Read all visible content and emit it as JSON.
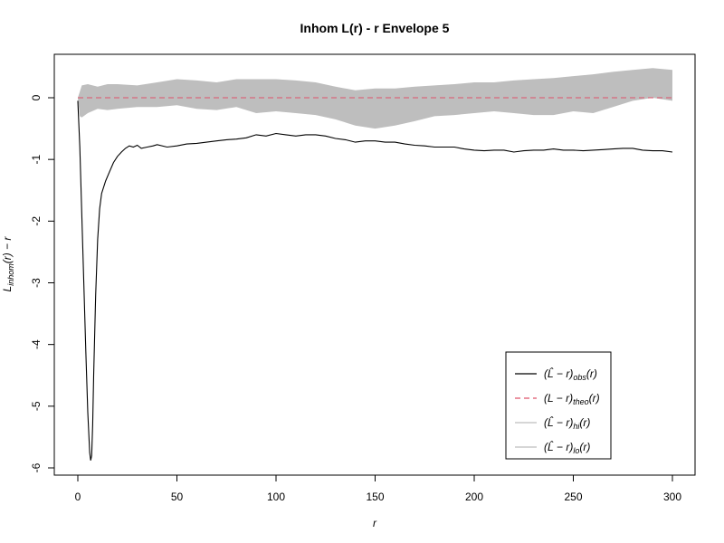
{
  "chart_data": {
    "type": "line",
    "title": "Inhom L(r) - r Envelope 5",
    "xlabel": "r",
    "ylabel": "L_inhom(r) − r",
    "xlim": [
      0,
      300
    ],
    "ylim": [
      -6,
      0.5
    ],
    "x_ticks": [
      0,
      50,
      100,
      150,
      200,
      250,
      300
    ],
    "x_tick_labels": [
      "0",
      "50",
      "100",
      "150",
      "200",
      "250",
      "300"
    ],
    "y_ticks": [
      -6,
      -5,
      -4,
      -3,
      -2,
      -1,
      0
    ],
    "y_tick_labels": [
      "-6",
      "-5",
      "-4",
      "-3",
      "-2",
      "-1",
      "0"
    ],
    "grid": false,
    "legend_position": "bottom-right",
    "legend": [
      {
        "series": "obs",
        "label_main": "(L̂ − r)",
        "sub": "obs",
        "suffix": "(r)",
        "color": "#000000",
        "dash": "none"
      },
      {
        "series": "theo",
        "label_main": "(L − r)",
        "sub": "theo",
        "suffix": "(r)",
        "color": "#DF536B",
        "dash": "6,4"
      },
      {
        "series": "hi",
        "label_main": "(L̂ − r)",
        "sub": "hi",
        "suffix": "(r)",
        "color": "#BEBEBE",
        "dash": "none"
      },
      {
        "series": "lo",
        "label_main": "(L̂ − r)",
        "sub": "lo",
        "suffix": "(r)",
        "color": "#BEBEBE",
        "dash": "none"
      }
    ],
    "envelope_color": "#BEBEBE",
    "series": [
      {
        "name": "obs",
        "color": "#000000",
        "x": [
          0,
          1,
          2,
          3,
          4,
          5,
          6,
          6.5,
          7,
          7.5,
          8,
          9,
          10,
          11,
          12,
          14,
          16,
          18,
          20,
          22,
          24,
          26,
          28,
          30,
          32,
          35,
          38,
          40,
          45,
          50,
          55,
          60,
          65,
          70,
          75,
          80,
          85,
          90,
          95,
          100,
          105,
          110,
          115,
          120,
          125,
          130,
          135,
          140,
          145,
          150,
          155,
          160,
          165,
          170,
          175,
          180,
          185,
          190,
          195,
          200,
          205,
          210,
          215,
          220,
          225,
          230,
          235,
          240,
          245,
          250,
          255,
          260,
          265,
          270,
          275,
          280,
          285,
          290,
          295,
          300
        ],
        "y": [
          -0.05,
          -0.8,
          -1.9,
          -3.0,
          -4.1,
          -5.1,
          -5.75,
          -5.88,
          -5.8,
          -5.3,
          -4.5,
          -3.2,
          -2.3,
          -1.8,
          -1.55,
          -1.35,
          -1.2,
          -1.05,
          -0.95,
          -0.88,
          -0.82,
          -0.78,
          -0.8,
          -0.77,
          -0.82,
          -0.8,
          -0.78,
          -0.76,
          -0.8,
          -0.78,
          -0.75,
          -0.74,
          -0.72,
          -0.7,
          -0.68,
          -0.67,
          -0.65,
          -0.6,
          -0.62,
          -0.58,
          -0.6,
          -0.62,
          -0.6,
          -0.6,
          -0.62,
          -0.66,
          -0.68,
          -0.72,
          -0.7,
          -0.7,
          -0.72,
          -0.72,
          -0.75,
          -0.77,
          -0.78,
          -0.8,
          -0.8,
          -0.8,
          -0.83,
          -0.85,
          -0.86,
          -0.85,
          -0.85,
          -0.88,
          -0.86,
          -0.85,
          -0.85,
          -0.83,
          -0.85,
          -0.85,
          -0.86,
          -0.85,
          -0.84,
          -0.83,
          -0.82,
          -0.82,
          -0.85,
          -0.86,
          -0.86,
          -0.88
        ]
      },
      {
        "name": "theo",
        "color": "#DF536B",
        "x": [
          0,
          300
        ],
        "y": [
          0,
          0
        ]
      },
      {
        "name": "hi",
        "color": "#BEBEBE",
        "x": [
          0,
          1,
          2,
          5,
          10,
          15,
          20,
          30,
          40,
          50,
          60,
          70,
          80,
          90,
          100,
          110,
          120,
          130,
          140,
          150,
          160,
          170,
          180,
          190,
          200,
          210,
          220,
          230,
          240,
          250,
          260,
          270,
          280,
          290,
          300
        ],
        "y": [
          0,
          0.1,
          0.2,
          0.22,
          0.18,
          0.22,
          0.22,
          0.2,
          0.25,
          0.3,
          0.28,
          0.25,
          0.3,
          0.3,
          0.3,
          0.28,
          0.25,
          0.18,
          0.12,
          0.15,
          0.15,
          0.18,
          0.2,
          0.22,
          0.25,
          0.25,
          0.28,
          0.3,
          0.32,
          0.35,
          0.38,
          0.42,
          0.45,
          0.48,
          0.45
        ]
      },
      {
        "name": "lo",
        "color": "#BEBEBE",
        "x": [
          0,
          1,
          2,
          5,
          10,
          15,
          20,
          30,
          40,
          50,
          60,
          70,
          80,
          90,
          100,
          110,
          120,
          130,
          140,
          150,
          160,
          170,
          180,
          190,
          200,
          210,
          220,
          230,
          240,
          250,
          260,
          270,
          280,
          290,
          300
        ],
        "y": [
          0,
          -0.3,
          -0.32,
          -0.25,
          -0.18,
          -0.2,
          -0.18,
          -0.15,
          -0.15,
          -0.12,
          -0.18,
          -0.2,
          -0.15,
          -0.25,
          -0.22,
          -0.25,
          -0.28,
          -0.35,
          -0.45,
          -0.5,
          -0.45,
          -0.38,
          -0.3,
          -0.28,
          -0.25,
          -0.22,
          -0.25,
          -0.28,
          -0.28,
          -0.22,
          -0.25,
          -0.15,
          -0.05,
          0.0,
          -0.05
        ]
      }
    ]
  }
}
